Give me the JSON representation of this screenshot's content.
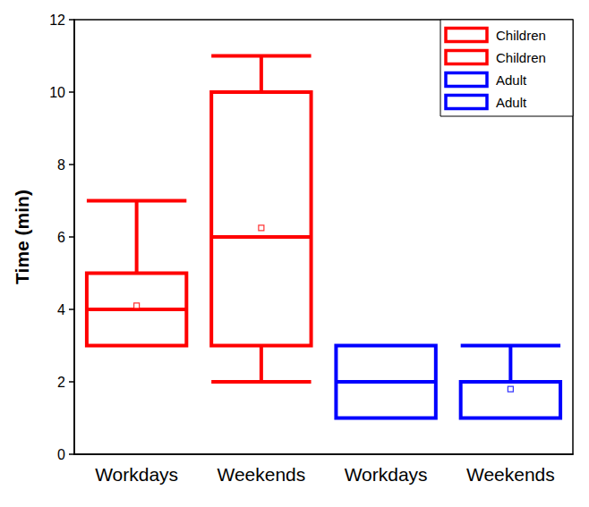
{
  "chart_data": {
    "type": "boxplot",
    "categories": [
      "Workdays",
      "Weekends",
      "Workdays",
      "Weekends"
    ],
    "y_label": "Time (min)",
    "ylim": [
      0,
      12
    ],
    "yticks": [
      0,
      2,
      4,
      6,
      8,
      10,
      12
    ],
    "grid": false,
    "legend": "upper right",
    "marker": "square",
    "series": [
      {
        "name": "Children",
        "color": "#ff0000",
        "values": [
          [
            3,
            3,
            4,
            5,
            7
          ],
          null,
          null,
          null
        ],
        "means": [
          4.1,
          null,
          null,
          null
        ]
      },
      {
        "name": "Children",
        "color": "#ff0000",
        "values": [
          null,
          [
            2,
            3,
            6,
            10,
            11
          ],
          null,
          null
        ],
        "means": [
          null,
          6.25,
          null,
          null
        ]
      },
      {
        "name": "Adult",
        "color": "#0000ff",
        "values": [
          null,
          null,
          [
            1,
            1,
            2,
            3,
            3
          ],
          null
        ],
        "means": [
          null,
          null,
          null,
          null
        ]
      },
      {
        "name": "Adult",
        "color": "#0000ff",
        "values": [
          null,
          null,
          null,
          [
            1,
            1,
            1,
            2,
            3
          ]
        ],
        "means": [
          null,
          null,
          null,
          1.8
        ]
      }
    ]
  }
}
